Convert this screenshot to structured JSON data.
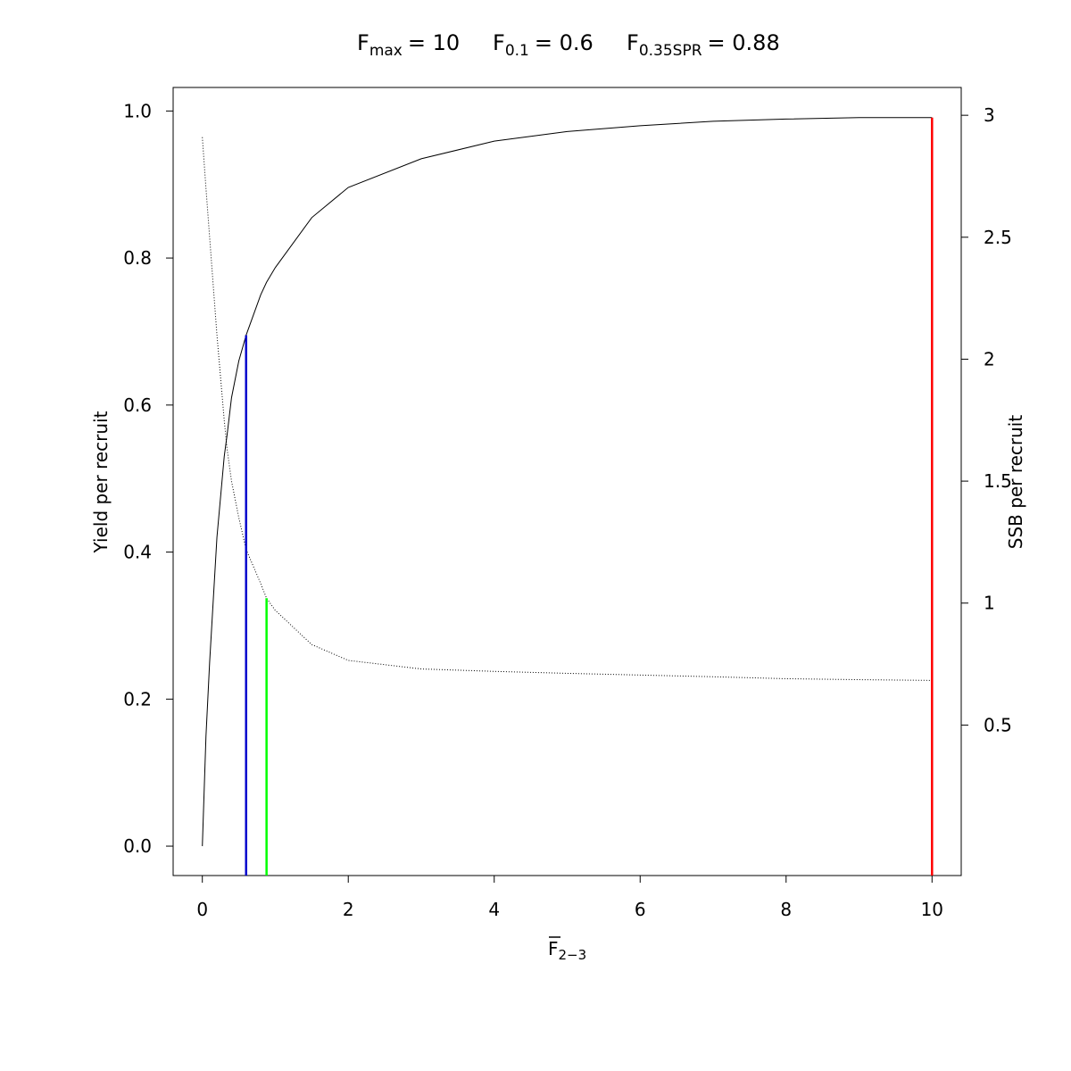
{
  "chart_data": {
    "type": "line",
    "title_parts": [
      {
        "base": "F",
        "sub": "max",
        "value": 10,
        "value_label": "= 10",
        "color": "#ff0000",
        "line_top": 0.991,
        "axis": "y"
      },
      {
        "base": "F",
        "sub": "0.1",
        "value": 0.6,
        "value_label": "= 0.6",
        "color": "#0000cd",
        "line_top": 0.695,
        "axis": "y"
      },
      {
        "base": "F",
        "sub": "0.35SPR",
        "value": 0.88,
        "value_label": "= 0.88",
        "color": "#00ff00",
        "line_top": 1.02,
        "axis": "y2"
      }
    ],
    "xlabel": {
      "base": "F",
      "sub": "2−3"
    },
    "ylabel": "Yield per recruit",
    "y2label": "SSB per recruit",
    "x": [
      0,
      0.05,
      0.1,
      0.2,
      0.3,
      0.34,
      0.4,
      0.5,
      0.6,
      0.8,
      0.88,
      1,
      1.5,
      2,
      3,
      4,
      5,
      6,
      7,
      8,
      9,
      10
    ],
    "series": [
      {
        "name": "Yield per recruit",
        "color": "#000000",
        "style": "solid",
        "axis": "y",
        "values": [
          0,
          0.15,
          0.25,
          0.42,
          0.53,
          0.56,
          0.61,
          0.66,
          0.695,
          0.75,
          0.767,
          0.787,
          0.855,
          0.896,
          0.935,
          0.959,
          0.972,
          0.98,
          0.986,
          0.989,
          0.991,
          0.991
        ]
      },
      {
        "name": "SSB per recruit",
        "color": "#000000",
        "style": "dotted",
        "axis": "y2",
        "values": [
          2.91,
          2.7,
          2.5,
          2.1,
          1.75,
          1.63,
          1.5,
          1.35,
          1.22,
          1.08,
          1.02,
          0.97,
          0.83,
          0.765,
          0.73,
          0.72,
          0.712,
          0.705,
          0.698,
          0.69,
          0.686,
          0.683
        ]
      }
    ],
    "xlim": [
      -0.4,
      10.4
    ],
    "xticks": [
      0,
      2,
      4,
      6,
      8,
      10
    ],
    "ylim": [
      -0.04,
      1.032
    ],
    "yticks": [
      {
        "value": 0,
        "label": "0.0"
      },
      {
        "value": 0.2,
        "label": "0.2"
      },
      {
        "value": 0.4,
        "label": "0.4"
      },
      {
        "value": 0.6,
        "label": "0.6"
      },
      {
        "value": 0.8,
        "label": "0.8"
      },
      {
        "value": 1,
        "label": "1.0"
      }
    ],
    "y2lim": [
      -0.117,
      3.114
    ],
    "y2ticks": [
      0.5,
      1,
      1.5,
      2,
      2.5,
      3
    ]
  }
}
